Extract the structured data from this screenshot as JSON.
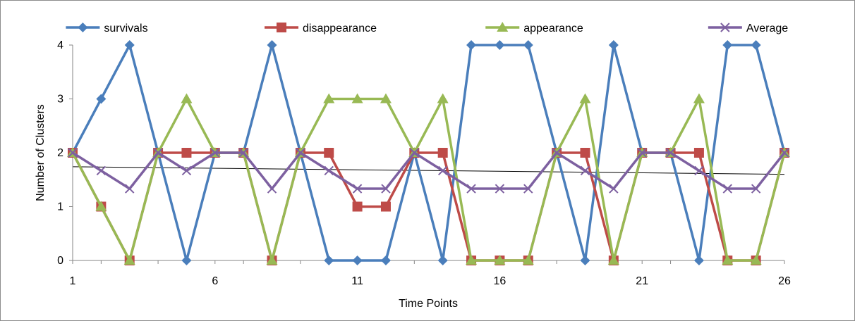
{
  "chart_data": {
    "type": "line",
    "title": "",
    "xlabel": "Time Points",
    "ylabel": "Number of Clusters",
    "x": [
      1,
      2,
      3,
      4,
      5,
      6,
      7,
      8,
      9,
      10,
      11,
      12,
      13,
      14,
      15,
      16,
      17,
      18,
      19,
      20,
      21,
      22,
      23,
      24,
      25,
      26
    ],
    "x_tick_labels": [
      "1",
      "6",
      "11",
      "16",
      "21",
      "26"
    ],
    "x_tick_values": [
      1,
      6,
      11,
      16,
      21,
      26
    ],
    "y_tick_labels": [
      "0",
      "1",
      "2",
      "3",
      "4"
    ],
    "y_tick_values": [
      0,
      1,
      2,
      3,
      4
    ],
    "ylim": [
      0,
      4
    ],
    "grid": false,
    "legend_position": "top",
    "series": [
      {
        "name": "survivals",
        "color": "#4a7ebb",
        "marker": "diamond",
        "values": [
          2,
          3,
          4,
          2,
          0,
          2,
          2,
          4,
          2,
          0,
          0,
          0,
          2,
          0,
          4,
          4,
          4,
          2,
          0,
          4,
          2,
          2,
          0,
          4,
          4,
          2
        ]
      },
      {
        "name": "disappearance",
        "color": "#be4b48",
        "marker": "square",
        "values": [
          2,
          1,
          0,
          2,
          2,
          2,
          2,
          0,
          2,
          2,
          1,
          1,
          2,
          2,
          0,
          0,
          0,
          2,
          2,
          0,
          2,
          2,
          2,
          0,
          0,
          2
        ]
      },
      {
        "name": "appearance",
        "color": "#98b954",
        "marker": "triangle",
        "values": [
          2,
          1,
          0,
          2,
          3,
          2,
          2,
          0,
          2,
          3,
          3,
          3,
          2,
          3,
          0,
          0,
          0,
          2,
          3,
          0,
          2,
          2,
          3,
          0,
          0,
          2
        ]
      },
      {
        "name": "Average",
        "color": "#7d60a0",
        "marker": "x",
        "values": [
          2,
          1.667,
          1.333,
          2,
          1.667,
          2,
          2,
          1.333,
          2,
          1.667,
          1.333,
          1.333,
          2,
          1.667,
          1.333,
          1.333,
          1.333,
          2,
          1.667,
          1.333,
          2,
          2,
          1.667,
          1.333,
          1.333,
          2
        ]
      }
    ],
    "trendline": {
      "series": "Average",
      "type": "linear",
      "color": "#000000",
      "start": [
        1,
        1.74
      ],
      "end": [
        26,
        1.6
      ]
    }
  }
}
